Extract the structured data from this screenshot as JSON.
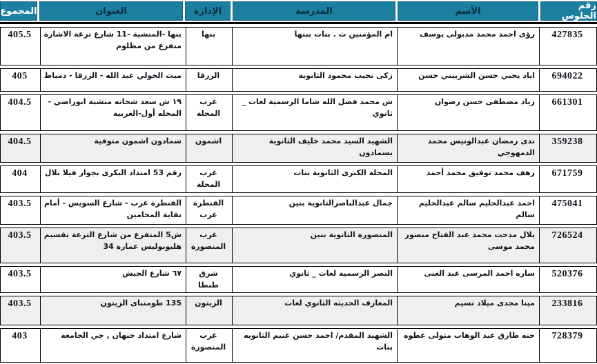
{
  "colors": {
    "header_bg": "#1b80a0",
    "header_text_dark": "#0d2c3e",
    "header_text_light": "#ffffff",
    "row_shaded_bg": "#efefef",
    "border": "#000000"
  },
  "table": {
    "headers": [
      {
        "key": "seat",
        "label": "رقم الجلوس"
      },
      {
        "key": "name",
        "label": "الأسم"
      },
      {
        "key": "school",
        "label": "المدرسة"
      },
      {
        "key": "admin",
        "label": "الإدارة"
      },
      {
        "key": "address",
        "label": "العنوان"
      },
      {
        "key": "total",
        "label": "المجموع"
      }
    ],
    "rows": [
      {
        "seat": "427835",
        "name": "رؤى احمد محمد مدبولى يوسف",
        "school": "ام المؤمنين ث . بنات ببنها",
        "admin": "بنها",
        "address": "بنها -المنشية -11 شارع ترعة الاشارة متفرع من مظلوم",
        "total": "405.5",
        "shaded": false
      },
      {
        "seat": "694022",
        "name": "اياد يحيي حسن الشربيني حسن",
        "school": "زكى نجيب محمود الثانوية",
        "admin": "الزرقا",
        "address": "ميت الخولي عبد الله - الزرقا - دمياط",
        "total": "405",
        "shaded": false
      },
      {
        "seat": "661301",
        "name": "زياد مصطفى حسن رضوان",
        "school": "ش محمد فضل الله شاما الرسمية لغات _ ثانوي",
        "admin": "غرب المحلة",
        "address": "١٩ ش سعد شحاته منشية ابوراضي - المحله أول-الغربية",
        "total": "404.5",
        "shaded": false
      },
      {
        "seat": "359238",
        "name": "ندى رمضان عبدالونيس محمد الدمهوجي",
        "school": "الشهيد السيد محمد خليف الثانوية بسمادون",
        "admin": "اشمون",
        "address": "سمادون اشمون منوفية",
        "total": "404.5",
        "shaded": true
      },
      {
        "seat": "671759",
        "name": "رهف محمد توفيق محمد أحمد",
        "school": "المحلة الكبرى الثانوية بنات",
        "admin": "غرب المحلة",
        "address": "رقم 53 امتداد البكرى بجوار فيلا بلال",
        "total": "404",
        "shaded": false
      },
      {
        "seat": "475041",
        "name": "احمد عبدالحليم سالم عبدالحليم سالم",
        "school": "جمال عبدالناصرالثانوية بنين",
        "admin": "القنطرة غرب",
        "address": "القنطرة غرب - شارع السويس - أمام نقابة المحامين",
        "total": "403.5",
        "shaded": false
      },
      {
        "seat": "726524",
        "name": "بلال مدحت محمد عبد الفتاح منصور محمد موسى",
        "school": "المنصورة الثانوية بنين",
        "admin": "غرب المنصورة",
        "address": "ش5 المتفرع من شارع الترعة تقسيم هليوبوليس عمارة 34",
        "total": "403.5",
        "shaded": true
      },
      {
        "seat": "520376",
        "name": "ساره احمد المرسى عبد الغنى",
        "school": "النصر الرسمية لغات _ ثانوي",
        "admin": "شرق طنطا",
        "address": "٦٧ شارع الجيش",
        "total": "403.5",
        "shaded": false
      },
      {
        "seat": "233816",
        "name": "مينا مجدى ميلاد نسيم",
        "school": "المعارف الحديثه الثانوي لغات",
        "admin": "الزيتون",
        "address": "135 طومنباى الزيتون",
        "total": "403.5",
        "shaded": true
      },
      {
        "seat": "728379",
        "name": "جنه طارق عبد الوهاب متولى عطوه",
        "school": "الشهيد المقدم/ احمد حسن غنيم الثانويه بنات",
        "admin": "غرب المنصورة",
        "address": "شارع امتداد جيهان , حي الجامعة",
        "total": "403",
        "shaded": false
      }
    ]
  }
}
